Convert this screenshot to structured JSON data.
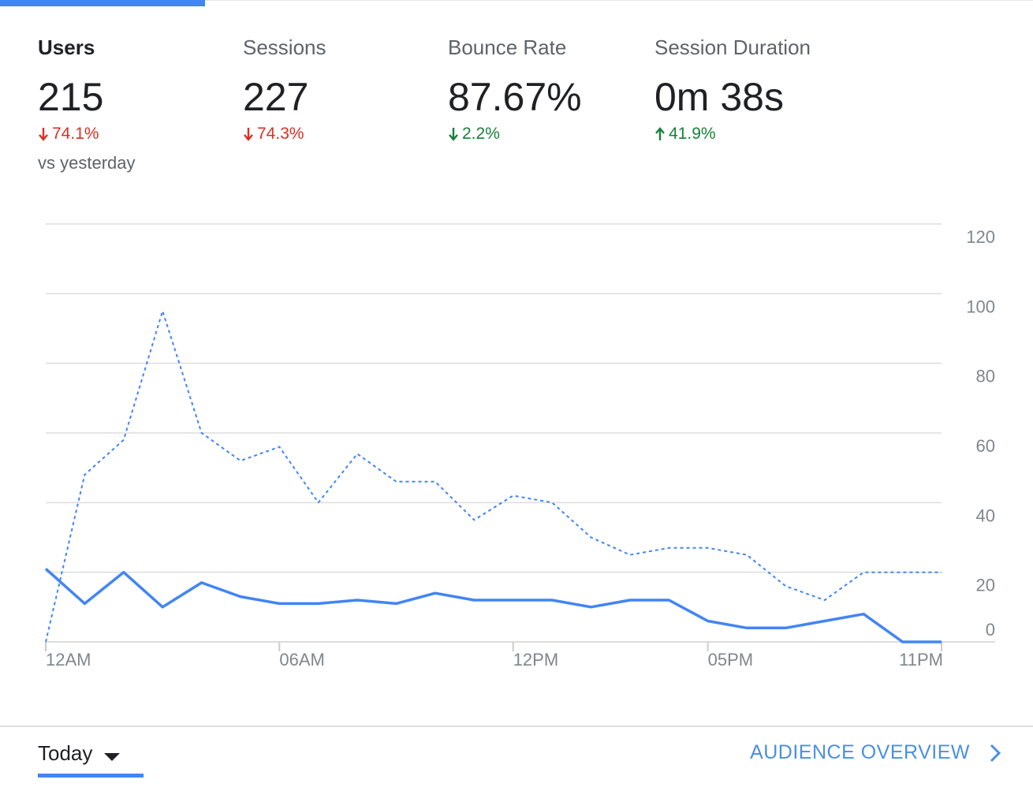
{
  "metrics": [
    {
      "label": "Users",
      "value": "215",
      "delta": "74.1%",
      "direction": "down",
      "color": "#d93025",
      "comparison": "vs yesterday"
    },
    {
      "label": "Sessions",
      "value": "227",
      "delta": "74.3%",
      "direction": "down",
      "color": "#d93025"
    },
    {
      "label": "Bounce Rate",
      "value": "87.67%",
      "delta": "2.2%",
      "direction": "down",
      "color": "#188038"
    },
    {
      "label": "Session Duration",
      "value": "0m 38s",
      "delta": "41.9%",
      "direction": "up",
      "color": "#188038"
    }
  ],
  "chart_data": {
    "type": "line",
    "x": [
      "12AM",
      "1AM",
      "2AM",
      "3AM",
      "4AM",
      "5AM",
      "6AM",
      "7AM",
      "8AM",
      "9AM",
      "10AM",
      "11AM",
      "12PM",
      "1PM",
      "2PM",
      "3PM",
      "4PM",
      "5PM",
      "6PM",
      "7PM",
      "8PM",
      "9PM",
      "10PM",
      "11PM"
    ],
    "x_tick_labels": [
      "12AM",
      "06AM",
      "12PM",
      "05PM",
      "11PM"
    ],
    "series": [
      {
        "style": "solid",
        "color": "#4285f4",
        "values": [
          21,
          11,
          20,
          10,
          17,
          13,
          11,
          11,
          12,
          11,
          14,
          12,
          12,
          12,
          10,
          12,
          12,
          6,
          4,
          4,
          6,
          8,
          0,
          0
        ]
      },
      {
        "style": "dashed",
        "color": "#4285f4",
        "values": [
          0,
          48,
          58,
          95,
          60,
          52,
          56,
          40,
          54,
          46,
          46,
          35,
          42,
          40,
          30,
          25,
          27,
          27,
          25,
          16,
          12,
          20,
          20,
          20
        ]
      }
    ],
    "y_ticks": [
      0,
      20,
      40,
      60,
      80,
      100,
      120
    ],
    "ylim": [
      0,
      120
    ],
    "grid": true
  },
  "footer": {
    "period_label": "Today",
    "audience_link": "AUDIENCE OVERVIEW"
  },
  "colors": {
    "accent": "#4285f4",
    "link": "#4a90e2"
  }
}
